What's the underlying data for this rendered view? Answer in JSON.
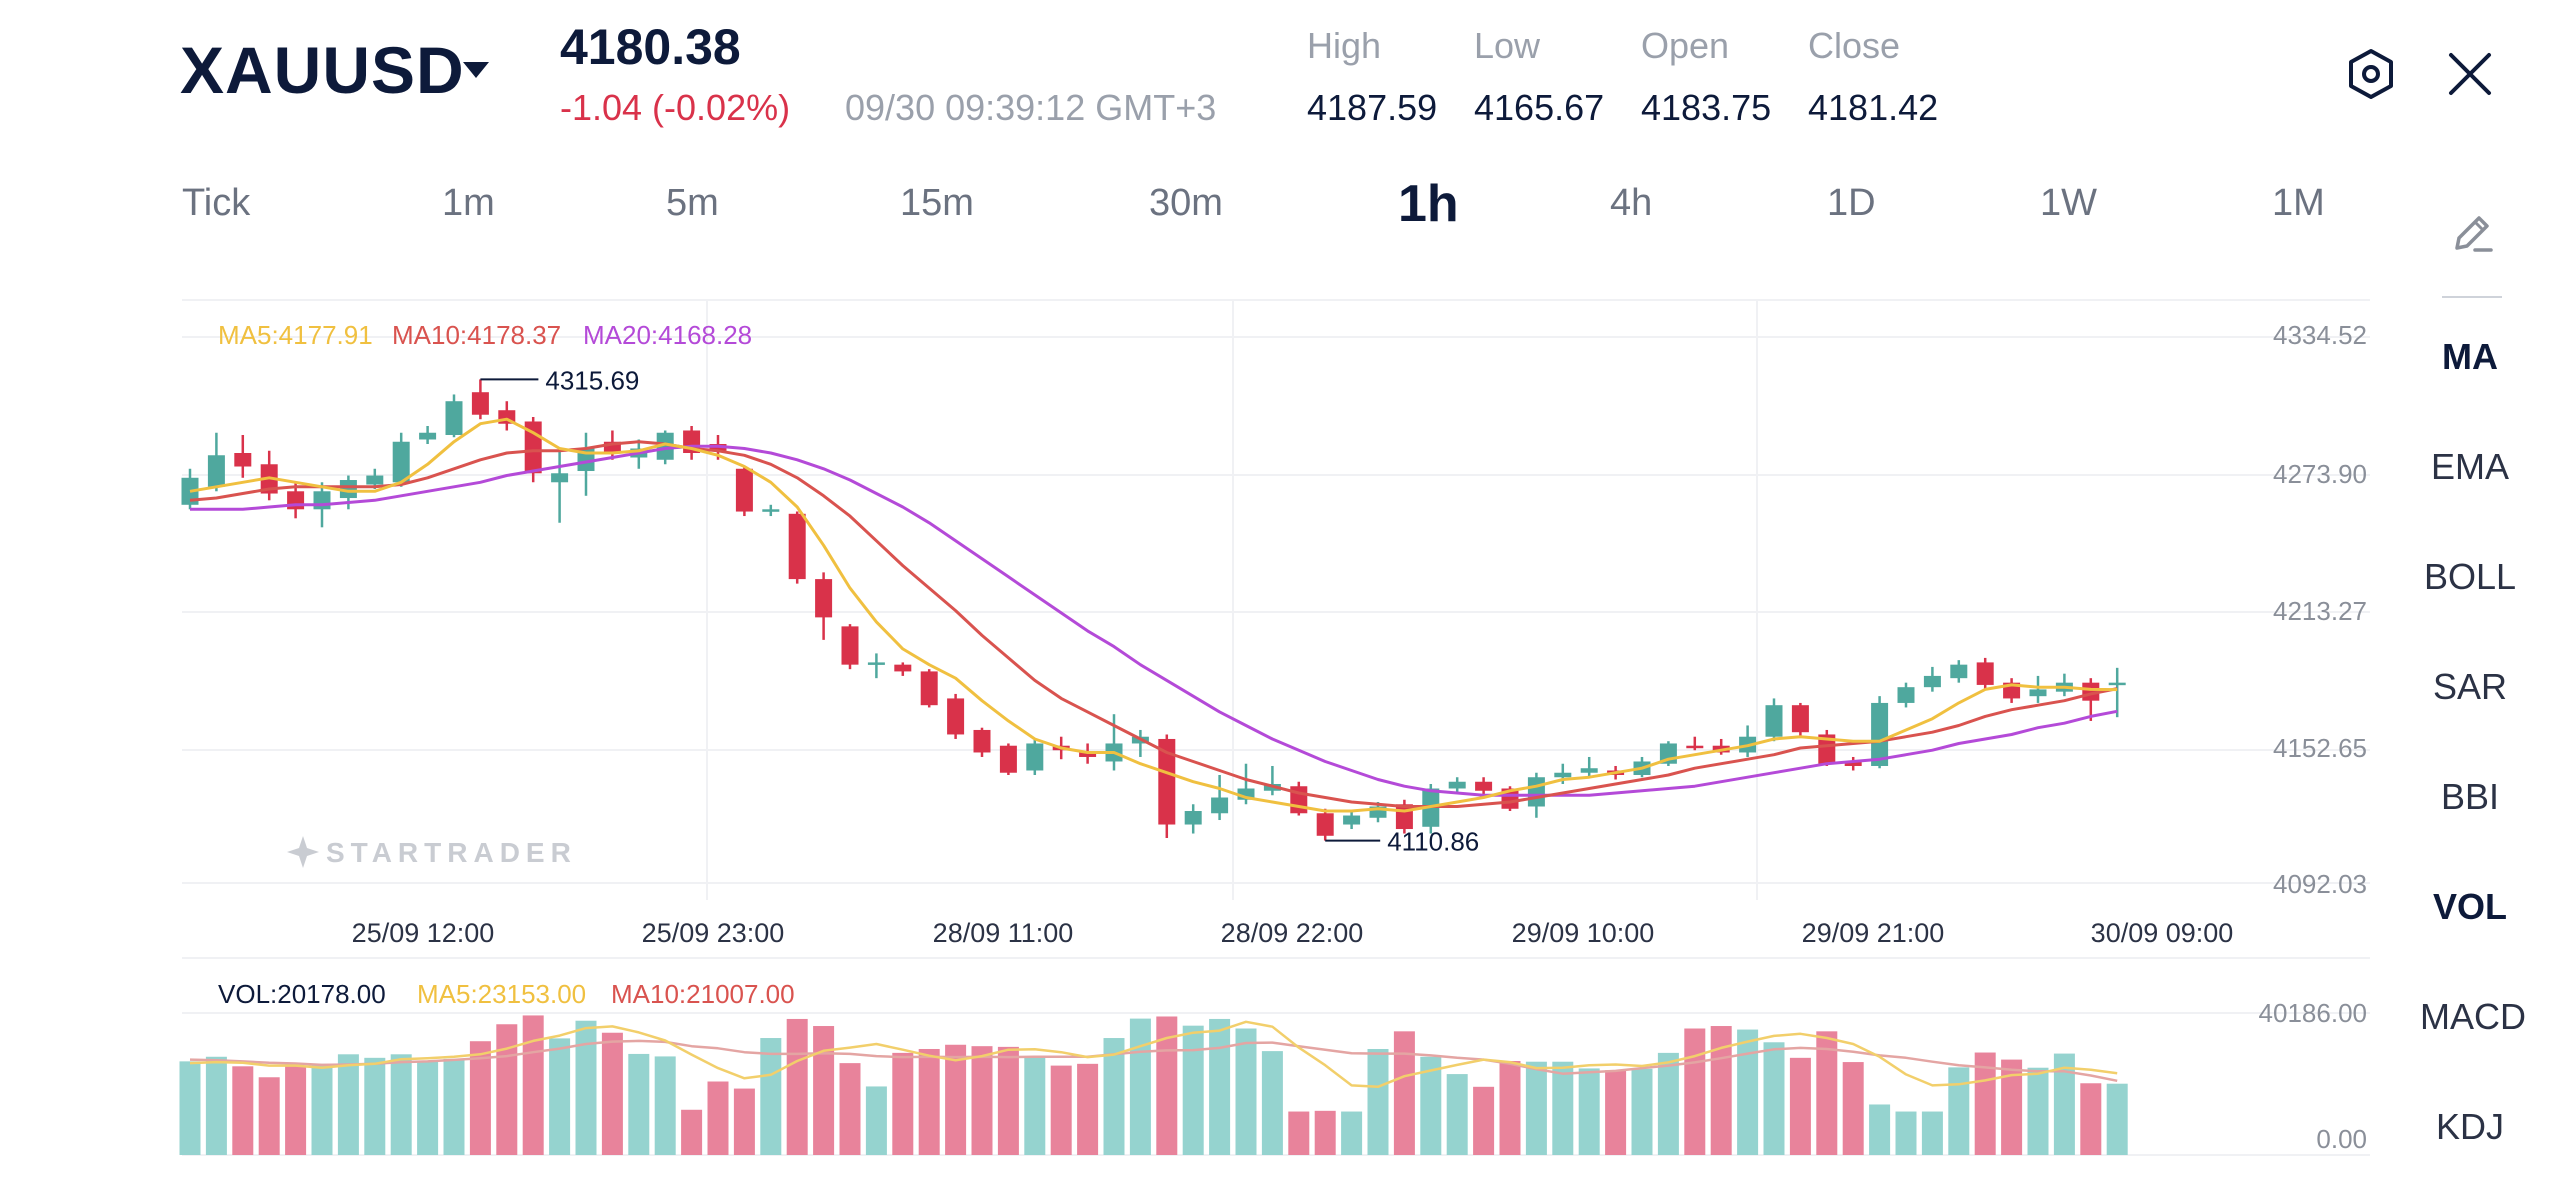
{
  "header": {
    "symbol": "XAUUSD",
    "price": "4180.38",
    "change": "-1.04 (-0.02%)",
    "timestamp": "09/30 09:39:12 GMT+3",
    "ohlc": [
      {
        "label": "High",
        "value": "4187.59"
      },
      {
        "label": "Low",
        "value": "4165.67"
      },
      {
        "label": "Open",
        "value": "4183.75"
      },
      {
        "label": "Close",
        "value": "4181.42"
      }
    ],
    "settings_icon": "settings-hexagon-icon",
    "close_icon": "close-icon"
  },
  "timeframes": [
    "Tick",
    "1m",
    "5m",
    "15m",
    "30m",
    "1h",
    "4h",
    "1D",
    "1W",
    "1M"
  ],
  "active_timeframe": "1h",
  "sidebar": {
    "draw_icon": "pencil-icon",
    "items": [
      "MA",
      "EMA",
      "BOLL",
      "SAR",
      "BBI",
      "VOL",
      "MACD",
      "KDJ"
    ],
    "active": [
      "MA",
      "VOL"
    ]
  },
  "watermark": "STARTRADER",
  "colors": {
    "up": "#4fa89e",
    "down": "#d9324a",
    "ma5": "#f0c040",
    "ma10": "#d9534f",
    "ma20": "#b44ad8",
    "vol_up": "#95d3cf",
    "vol_down": "#e8839b",
    "text": "#0d1a3a"
  },
  "chart_data": [
    {
      "type": "candlestick",
      "title": "",
      "legend": [
        {
          "label": "MA5:4177.91",
          "color": "#f0c040"
        },
        {
          "label": "MA10:4178.37",
          "color": "#d9534f"
        },
        {
          "label": "MA20:4168.28",
          "color": "#b44ad8"
        }
      ],
      "y_ticks": [
        "4334.52",
        "4273.90",
        "4213.27",
        "4152.65",
        "4092.03"
      ],
      "ylim": [
        4092.03,
        4334.52
      ],
      "x_ticks": [
        "25/09 12:00",
        "25/09 23:00",
        "28/09 11:00",
        "28/09 22:00",
        "29/09 10:00",
        "29/09 21:00",
        "30/09 09:00"
      ],
      "annotations": [
        {
          "text": "4315.69",
          "kind": "high",
          "value": 4315.69
        },
        {
          "text": "4110.86",
          "kind": "low",
          "value": 4110.86
        }
      ],
      "candles": [
        {
          "o": 4260,
          "c": 4272,
          "h": 4276,
          "l": 4258
        },
        {
          "o": 4268,
          "c": 4282,
          "h": 4292,
          "l": 4266
        },
        {
          "o": 4283,
          "c": 4277,
          "h": 4291,
          "l": 4272
        },
        {
          "o": 4278,
          "c": 4265,
          "h": 4284,
          "l": 4262
        },
        {
          "o": 4266,
          "c": 4258,
          "h": 4270,
          "l": 4254
        },
        {
          "o": 4258,
          "c": 4266,
          "h": 4270,
          "l": 4250
        },
        {
          "o": 4263,
          "c": 4271,
          "h": 4273,
          "l": 4258
        },
        {
          "o": 4269,
          "c": 4273,
          "h": 4276,
          "l": 4267
        },
        {
          "o": 4270,
          "c": 4288,
          "h": 4292,
          "l": 4268
        },
        {
          "o": 4289,
          "c": 4292,
          "h": 4295,
          "l": 4287
        },
        {
          "o": 4291,
          "c": 4306,
          "h": 4309,
          "l": 4290
        },
        {
          "o": 4310,
          "c": 4300,
          "h": 4315.69,
          "l": 4298
        },
        {
          "o": 4302,
          "c": 4296,
          "h": 4306,
          "l": 4293
        },
        {
          "o": 4297,
          "c": 4274,
          "h": 4299,
          "l": 4270
        },
        {
          "o": 4270,
          "c": 4274,
          "h": 4285,
          "l": 4252
        },
        {
          "o": 4275,
          "c": 4285,
          "h": 4292,
          "l": 4264
        },
        {
          "o": 4288,
          "c": 4283,
          "h": 4293,
          "l": 4280
        },
        {
          "o": 4281,
          "c": 4285,
          "h": 4289,
          "l": 4276
        },
        {
          "o": 4280,
          "c": 4292,
          "h": 4293,
          "l": 4278
        },
        {
          "o": 4293,
          "c": 4283,
          "h": 4295,
          "l": 4280
        },
        {
          "o": 4287,
          "c": 4284,
          "h": 4291,
          "l": 4280
        },
        {
          "o": 4276,
          "c": 4257,
          "h": 4277,
          "l": 4255
        },
        {
          "o": 4258,
          "c": 4258,
          "h": 4260,
          "l": 4255
        },
        {
          "o": 4256,
          "c": 4227,
          "h": 4257,
          "l": 4225
        },
        {
          "o": 4227,
          "c": 4210,
          "h": 4230,
          "l": 4200
        },
        {
          "o": 4206,
          "c": 4189,
          "h": 4207,
          "l": 4187
        },
        {
          "o": 4189,
          "c": 4190,
          "h": 4194,
          "l": 4183
        },
        {
          "o": 4189,
          "c": 4186,
          "h": 4190,
          "l": 4184
        },
        {
          "o": 4186,
          "c": 4171,
          "h": 4187,
          "l": 4170
        },
        {
          "o": 4174,
          "c": 4158,
          "h": 4176,
          "l": 4156
        },
        {
          "o": 4160,
          "c": 4150,
          "h": 4161,
          "l": 4148
        },
        {
          "o": 4153,
          "c": 4141,
          "h": 4154,
          "l": 4140
        },
        {
          "o": 4142,
          "c": 4154,
          "h": 4156,
          "l": 4140
        },
        {
          "o": 4153,
          "c": 4151,
          "h": 4157,
          "l": 4147
        },
        {
          "o": 4150,
          "c": 4148,
          "h": 4154,
          "l": 4145
        },
        {
          "o": 4146,
          "c": 4154,
          "h": 4167,
          "l": 4142
        },
        {
          "o": 4154,
          "c": 4157,
          "h": 4160,
          "l": 4148
        },
        {
          "o": 4156,
          "c": 4118,
          "h": 4158,
          "l": 4112
        },
        {
          "o": 4118,
          "c": 4124,
          "h": 4127,
          "l": 4114
        },
        {
          "o": 4123,
          "c": 4130,
          "h": 4140,
          "l": 4120
        },
        {
          "o": 4129,
          "c": 4134,
          "h": 4145,
          "l": 4127
        },
        {
          "o": 4133,
          "c": 4136,
          "h": 4144,
          "l": 4131
        },
        {
          "o": 4135,
          "c": 4123,
          "h": 4137,
          "l": 4122
        },
        {
          "o": 4123,
          "c": 4113,
          "h": 4125,
          "l": 4110.86
        },
        {
          "o": 4118,
          "c": 4122,
          "h": 4124,
          "l": 4116
        },
        {
          "o": 4121,
          "c": 4126,
          "h": 4128,
          "l": 4119
        },
        {
          "o": 4127,
          "c": 4116,
          "h": 4129,
          "l": 4114
        },
        {
          "o": 4117,
          "c": 4134,
          "h": 4136,
          "l": 4114
        },
        {
          "o": 4134,
          "c": 4137,
          "h": 4139,
          "l": 4132
        },
        {
          "o": 4137,
          "c": 4133,
          "h": 4139,
          "l": 4131
        },
        {
          "o": 4134,
          "c": 4125,
          "h": 4135,
          "l": 4124
        },
        {
          "o": 4126,
          "c": 4139,
          "h": 4141,
          "l": 4121
        },
        {
          "o": 4139,
          "c": 4141,
          "h": 4145,
          "l": 4136
        },
        {
          "o": 4141,
          "c": 4143,
          "h": 4148,
          "l": 4139
        },
        {
          "o": 4142,
          "c": 4140,
          "h": 4144,
          "l": 4138
        },
        {
          "o": 4140,
          "c": 4146,
          "h": 4148,
          "l": 4139
        },
        {
          "o": 4145,
          "c": 4154,
          "h": 4155,
          "l": 4144
        },
        {
          "o": 4153,
          "c": 4152,
          "h": 4157,
          "l": 4151
        },
        {
          "o": 4153,
          "c": 4150,
          "h": 4156,
          "l": 4149
        },
        {
          "o": 4150,
          "c": 4157,
          "h": 4162,
          "l": 4148
        },
        {
          "o": 4157,
          "c": 4171,
          "h": 4174,
          "l": 4155
        },
        {
          "o": 4171,
          "c": 4159,
          "h": 4172,
          "l": 4157
        },
        {
          "o": 4158,
          "c": 4145,
          "h": 4160,
          "l": 4144
        },
        {
          "o": 4146,
          "c": 4144,
          "h": 4148,
          "l": 4142
        },
        {
          "o": 4144,
          "c": 4172,
          "h": 4175,
          "l": 4143
        },
        {
          "o": 4172,
          "c": 4179,
          "h": 4181,
          "l": 4170
        },
        {
          "o": 4179,
          "c": 4184,
          "h": 4188,
          "l": 4177
        },
        {
          "o": 4183,
          "c": 4189,
          "h": 4191,
          "l": 4181
        },
        {
          "o": 4190,
          "c": 4180,
          "h": 4192,
          "l": 4178
        },
        {
          "o": 4181,
          "c": 4174,
          "h": 4183,
          "l": 4172
        },
        {
          "o": 4175,
          "c": 4178,
          "h": 4184,
          "l": 4172
        },
        {
          "o": 4177,
          "c": 4181,
          "h": 4185,
          "l": 4175
        },
        {
          "o": 4181,
          "c": 4173,
          "h": 4183,
          "l": 4164
        },
        {
          "o": 4180,
          "c": 4181,
          "h": 4187.59,
          "l": 4165.67
        }
      ],
      "ma5": [
        4266,
        4268,
        4270,
        4272,
        4270,
        4268,
        4266,
        4266,
        4270,
        4278,
        4288,
        4296,
        4298,
        4292,
        4285,
        4283,
        4283,
        4284,
        4287,
        4285,
        4282,
        4277,
        4270,
        4259,
        4242,
        4223,
        4208,
        4196,
        4189,
        4183,
        4173,
        4164,
        4156,
        4152,
        4150,
        4150,
        4145,
        4141,
        4137,
        4134,
        4130,
        4128,
        4126,
        4124,
        4124,
        4125,
        4124,
        4126,
        4128,
        4130,
        4133,
        4135,
        4138,
        4139,
        4141,
        4143,
        4147,
        4149,
        4151,
        4153,
        4156,
        4157,
        4156,
        4155,
        4155,
        4160,
        4165,
        4172,
        4178,
        4180,
        4179,
        4179,
        4178,
        4177.91
      ],
      "ma10": [
        4262,
        4263,
        4265,
        4267,
        4268,
        4268,
        4268,
        4268,
        4269,
        4272,
        4276,
        4280,
        4283,
        4284,
        4284,
        4285,
        4287,
        4288,
        4287,
        4285,
        4284,
        4282,
        4278,
        4272,
        4264,
        4255,
        4244,
        4233,
        4223,
        4213,
        4202,
        4192,
        4182,
        4174,
        4168,
        4162,
        4156,
        4150,
        4146,
        4142,
        4138,
        4135,
        4132,
        4130,
        4128,
        4127,
        4126,
        4126,
        4126,
        4127,
        4128,
        4130,
        4132,
        4134,
        4136,
        4138,
        4140,
        4143,
        4145,
        4147,
        4149,
        4152,
        4153,
        4154,
        4155,
        4157,
        4159,
        4162,
        4166,
        4169,
        4171,
        4173,
        4176,
        4178.37
      ],
      "ma20": [
        4258,
        4258,
        4258,
        4259,
        4260,
        4260,
        4261,
        4262,
        4264,
        4266,
        4268,
        4270,
        4273,
        4275,
        4277,
        4279,
        4281,
        4283,
        4285,
        4286,
        4286,
        4285,
        4283,
        4280,
        4276,
        4271,
        4265,
        4259,
        4252,
        4244,
        4236,
        4228,
        4220,
        4212,
        4204,
        4197,
        4189,
        4182,
        4175,
        4168,
        4162,
        4156,
        4151,
        4146,
        4142,
        4138,
        4135,
        4133,
        4132,
        4131,
        4131,
        4131,
        4131,
        4131,
        4132,
        4133,
        4134,
        4135,
        4137,
        4139,
        4141,
        4143,
        4145,
        4146,
        4147,
        4149,
        4151,
        4154,
        4156,
        4158,
        4161,
        4163,
        4166,
        4168.28
      ]
    },
    {
      "type": "bar",
      "title": "",
      "legend": [
        {
          "label": "VOL:20178.00",
          "color": "#0d1a3a"
        },
        {
          "label": "MA5:23153.00",
          "color": "#f0c040"
        },
        {
          "label": "MA10:21007.00",
          "color": "#d9534f"
        }
      ],
      "y_ticks": [
        "40186.00",
        "0.00"
      ],
      "ylim": [
        0,
        40186
      ],
      "volume": [
        26500,
        27800,
        25100,
        22000,
        25200,
        25800,
        28500,
        27500,
        28500,
        26600,
        27200,
        32200,
        37000,
        39500,
        33000,
        38000,
        34600,
        28600,
        27900,
        12800,
        20800,
        18800,
        33100,
        38500,
        36500,
        26000,
        19400,
        28900,
        30000,
        31200,
        30800,
        30600,
        27800,
        25300,
        25800,
        33100,
        38600,
        39200,
        36600,
        38500,
        35800,
        29400,
        12300,
        12500,
        12300,
        30000,
        35000,
        27800,
        22900,
        19300,
        26600,
        26400,
        26400,
        24500,
        24000,
        24400,
        28900,
        35800,
        36500,
        35500,
        31900,
        27500,
        35000,
        26300,
        14300,
        12300,
        12300,
        24800,
        29000,
        27000,
        24700,
        28700,
        20300,
        20178
      ],
      "ma5": [
        26000,
        26300,
        26100,
        25300,
        25300,
        24700,
        25400,
        25800,
        27100,
        27400,
        27800,
        28500,
        30100,
        32300,
        33800,
        35900,
        36400,
        34700,
        32400,
        28400,
        24600,
        21700,
        22700,
        26600,
        29500,
        30400,
        31400,
        29800,
        28100,
        26800,
        28000,
        29800,
        29900,
        29100,
        27700,
        28400,
        30800,
        33100,
        34600,
        35200,
        37700,
        36300,
        30400,
        25400,
        19700,
        19300,
        22300,
        23900,
        25500,
        27000,
        26300,
        24600,
        24700,
        25400,
        25600,
        25200,
        26200,
        28000,
        30300,
        32100,
        33700,
        34300,
        33100,
        31400,
        27800,
        22800,
        19700,
        20000,
        21100,
        22600,
        23000,
        24700,
        24100,
        23153
      ],
      "ma10": [
        27000,
        26800,
        26500,
        26100,
        25900,
        25500,
        25600,
        25800,
        26300,
        26500,
        26900,
        27400,
        28000,
        29100,
        30100,
        31400,
        32100,
        32300,
        32000,
        30800,
        30200,
        29100,
        28600,
        28600,
        28800,
        28600,
        28000,
        27700,
        27800,
        27700,
        27800,
        27700,
        27800,
        27800,
        27800,
        28500,
        29200,
        29600,
        29700,
        30300,
        31700,
        31800,
        30800,
        29800,
        28800,
        28700,
        28700,
        28200,
        27500,
        27000,
        25800,
        24300,
        23000,
        23400,
        23800,
        24600,
        25300,
        26200,
        27400,
        28700,
        29900,
        30300,
        30000,
        29200,
        28200,
        27500,
        26400,
        25400,
        24800,
        24100,
        23700,
        23700,
        22500,
        21007
      ]
    }
  ]
}
